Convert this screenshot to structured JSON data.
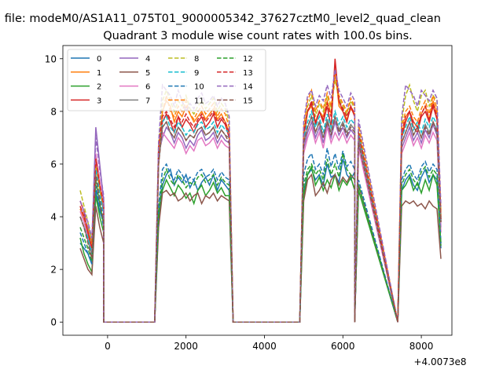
{
  "figure": {
    "suptitle": "n file: modeM0/AS1A11_075T01_9000005342_37627cztM0_level2_quad_clean",
    "title": "Quadrant 3 module wise count rates with 100.0s bins.",
    "offset_label": "+4.0073e8"
  },
  "chart_data": {
    "type": "line",
    "title": "Quadrant 3 module wise count rates with 100.0s bins.",
    "xlabel": "",
    "ylabel": "",
    "x_offset": 400730000,
    "xlim": [
      -1140,
      8780
    ],
    "ylim": [
      -0.5,
      10.5
    ],
    "xticks": [
      0,
      2000,
      4000,
      6000,
      8000
    ],
    "yticks": [
      0,
      2,
      4,
      6,
      8,
      10
    ],
    "grid": false,
    "legend": {
      "placement": "top-left",
      "ncol": 4
    },
    "series": [
      {
        "name": "0",
        "color": "#1f77b4",
        "dash": "solid",
        "seg1": [
          3.0,
          2.8,
          2.6,
          2.2,
          5.0,
          4.2,
          3.8
        ],
        "seg2": [
          4.0,
          5.2,
          5.6,
          5.8,
          5.2,
          5.5,
          5.3,
          5.6,
          5.1,
          5.4,
          5.0,
          5.3,
          5.5,
          5.2,
          5.6,
          5.0,
          5.4,
          5.2,
          5.0
        ],
        "seg3": [
          5.0,
          5.6,
          5.8,
          5.4,
          5.6,
          5.2,
          6.0,
          5.5,
          5.6,
          5.3,
          6.2,
          5.6,
          5.4,
          5.7,
          5.2
        ],
        "seg4": [
          5.0,
          5.4,
          5.6,
          5.2,
          5.0,
          5.5,
          5.8,
          5.3,
          5.6,
          5.4,
          2.8
        ]
      },
      {
        "name": "1",
        "color": "#ff7f0e",
        "dash": "solid",
        "seg1": [
          4.3,
          3.9,
          3.3,
          2.8,
          6.0,
          5.0,
          4.4
        ],
        "seg2": [
          6.0,
          8.0,
          8.4,
          8.2,
          7.6,
          8.0,
          7.8,
          8.2,
          7.9,
          7.6,
          7.8,
          8.0,
          7.7,
          7.9,
          8.1,
          7.7,
          7.9,
          7.6,
          7.2
        ],
        "seg3": [
          7.0,
          8.0,
          8.2,
          7.6,
          8.0,
          7.8,
          8.4,
          7.9,
          9.6,
          8.2,
          8.0,
          7.7,
          8.1,
          7.9,
          7.2
        ],
        "seg4": [
          7.0,
          7.8,
          8.0,
          7.6,
          7.4,
          7.9,
          8.2,
          7.7,
          8.4,
          7.9,
          4.0
        ]
      },
      {
        "name": "2",
        "color": "#2ca02c",
        "dash": "solid",
        "seg1": [
          3.2,
          2.6,
          2.2,
          1.9,
          4.8,
          4.0,
          3.4
        ],
        "seg2": [
          3.8,
          5.0,
          5.4,
          5.1,
          4.8,
          5.2,
          5.0,
          4.7,
          4.9,
          4.5,
          5.0,
          5.2,
          4.8,
          5.0,
          5.3,
          4.9,
          5.1,
          4.8,
          4.8
        ],
        "seg3": [
          4.8,
          5.6,
          5.9,
          5.2,
          5.5,
          5.0,
          5.4,
          5.1,
          5.6,
          5.0,
          5.4,
          5.2,
          5.5,
          5.0,
          5.0
        ],
        "seg4": [
          5.0,
          5.2,
          5.5,
          5.0,
          5.3,
          4.9,
          5.4,
          5.0,
          5.6,
          5.2,
          3.0
        ]
      },
      {
        "name": "3",
        "color": "#d62728",
        "dash": "solid",
        "seg1": [
          4.6,
          4.2,
          3.4,
          2.8,
          6.2,
          5.2,
          4.5
        ],
        "seg2": [
          6.6,
          7.6,
          7.9,
          7.6,
          7.2,
          7.8,
          7.4,
          7.7,
          7.5,
          7.2,
          7.6,
          7.8,
          7.4,
          7.6,
          7.9,
          7.4,
          7.7,
          7.5,
          7.0
        ],
        "seg3": [
          7.0,
          8.0,
          8.3,
          7.5,
          8.0,
          7.6,
          8.2,
          7.4,
          10.0,
          8.4,
          8.0,
          7.6,
          8.2,
          7.8,
          7.0
        ],
        "seg4": [
          7.0,
          7.6,
          8.0,
          7.4,
          7.2,
          7.8,
          8.0,
          7.6,
          8.2,
          7.7,
          3.8
        ]
      },
      {
        "name": "4",
        "color": "#9467bd",
        "dash": "solid",
        "seg1": [
          4.4,
          4.0,
          3.6,
          3.0,
          7.4,
          6.0,
          4.6
        ],
        "seg2": [
          6.4,
          7.0,
          7.4,
          7.2,
          6.8,
          7.2,
          7.0,
          6.6,
          6.9,
          6.7,
          7.1,
          7.3,
          6.9,
          7.0,
          7.2,
          6.8,
          7.1,
          6.9,
          6.8
        ],
        "seg3": [
          6.6,
          7.2,
          7.6,
          7.0,
          7.4,
          6.8,
          7.5,
          7.0,
          7.6,
          7.1,
          7.4,
          7.0,
          7.3,
          7.1,
          6.8
        ],
        "seg4": [
          6.6,
          7.0,
          7.4,
          6.9,
          7.2,
          6.8,
          7.3,
          7.0,
          7.5,
          7.1,
          3.6
        ]
      },
      {
        "name": "5",
        "color": "#8c564b",
        "dash": "solid",
        "seg1": [
          2.8,
          2.4,
          2.0,
          1.8,
          4.4,
          3.6,
          3.0
        ],
        "seg2": [
          3.6,
          4.9,
          5.0,
          4.8,
          4.9,
          4.6,
          4.7,
          4.9,
          4.6,
          4.8,
          4.9,
          4.5,
          4.8,
          4.7,
          4.9,
          4.6,
          4.8,
          4.7,
          4.6
        ],
        "seg3": [
          4.6,
          5.4,
          5.6,
          4.8,
          5.0,
          5.3,
          4.9,
          5.4,
          5.6,
          5.2,
          5.5,
          5.3,
          5.6,
          5.4,
          5.2
        ],
        "seg4": [
          4.4,
          4.6,
          4.5,
          4.6,
          4.4,
          4.5,
          4.3,
          4.6,
          4.4,
          4.3,
          2.4
        ]
      },
      {
        "name": "6",
        "color": "#e377c2",
        "dash": "solid",
        "seg1": [
          4.2,
          3.8,
          3.2,
          2.6,
          6.4,
          5.4,
          4.4
        ],
        "seg2": [
          6.2,
          7.2,
          7.0,
          6.8,
          6.6,
          7.0,
          6.8,
          6.4,
          6.7,
          6.5,
          6.9,
          7.0,
          6.7,
          6.8,
          7.0,
          6.6,
          6.9,
          6.7,
          6.6
        ],
        "seg3": [
          6.4,
          7.0,
          7.4,
          6.8,
          7.2,
          6.6,
          7.4,
          6.8,
          7.2,
          6.9,
          7.2,
          6.8,
          7.1,
          6.9,
          6.6
        ],
        "seg4": [
          6.4,
          6.8,
          7.2,
          6.7,
          7.0,
          6.6,
          7.1,
          6.8,
          7.2,
          6.9,
          3.4
        ]
      },
      {
        "name": "7",
        "color": "#7f7f7f",
        "dash": "solid",
        "seg1": [
          4.0,
          3.6,
          3.1,
          2.5,
          6.0,
          5.0,
          4.2
        ],
        "seg2": [
          6.0,
          7.4,
          7.6,
          7.2,
          7.0,
          7.4,
          7.2,
          6.9,
          7.1,
          7.0,
          7.3,
          7.4,
          7.1,
          7.2,
          7.4,
          7.0,
          7.3,
          7.1,
          7.0
        ],
        "seg3": [
          6.8,
          7.4,
          7.8,
          7.2,
          7.6,
          7.0,
          7.7,
          7.2,
          7.8,
          7.3,
          7.6,
          7.2,
          7.5,
          7.3,
          7.0
        ],
        "seg4": [
          6.8,
          7.2,
          7.6,
          7.1,
          7.4,
          7.0,
          7.5,
          7.2,
          7.6,
          7.3,
          3.8
        ]
      },
      {
        "name": "8",
        "color": "#bcbd22",
        "dash": "dashed",
        "seg1": [
          5.0,
          4.4,
          3.8,
          3.0,
          6.0,
          5.0,
          4.4
        ],
        "seg2": [
          6.8,
          8.4,
          8.8,
          8.4,
          8.0,
          8.4,
          8.2,
          8.6,
          8.1,
          7.9,
          8.2,
          8.4,
          8.1,
          8.3,
          8.5,
          8.0,
          8.3,
          8.1,
          7.6
        ],
        "seg3": [
          7.2,
          8.2,
          8.6,
          7.8,
          8.3,
          8.0,
          8.6,
          8.1,
          9.2,
          8.5,
          8.2,
          7.9,
          8.4,
          8.1,
          7.4
        ],
        "seg4": [
          7.6,
          8.6,
          9.0,
          8.4,
          8.0,
          8.6,
          8.8,
          8.2,
          8.6,
          8.4,
          4.2
        ]
      },
      {
        "name": "9",
        "color": "#17becf",
        "dash": "dashed",
        "seg1": [
          4.0,
          3.6,
          3.2,
          2.6,
          5.8,
          4.8,
          4.0
        ],
        "seg2": [
          6.2,
          7.6,
          7.8,
          7.4,
          7.2,
          7.6,
          7.4,
          7.1,
          7.3,
          7.2,
          7.5,
          7.6,
          7.3,
          7.4,
          7.6,
          7.2,
          7.5,
          7.3,
          7.2
        ],
        "seg3": [
          7.0,
          7.6,
          8.0,
          7.4,
          7.8,
          7.2,
          7.9,
          7.4,
          8.0,
          7.5,
          7.8,
          7.4,
          7.7,
          7.5,
          7.2
        ],
        "seg4": [
          7.0,
          7.4,
          7.8,
          7.3,
          7.6,
          7.2,
          7.7,
          7.4,
          7.8,
          7.5,
          3.9
        ]
      },
      {
        "name": "10",
        "color": "#1f77b4",
        "dash": "dashed",
        "seg1": [
          3.4,
          3.0,
          2.6,
          2.2,
          5.2,
          4.4,
          3.6
        ],
        "seg2": [
          4.4,
          5.8,
          6.0,
          5.6,
          5.4,
          5.8,
          5.6,
          5.3,
          5.5,
          5.4,
          5.7,
          5.8,
          5.5,
          5.6,
          5.8,
          5.4,
          5.7,
          5.5,
          5.4
        ],
        "seg3": [
          5.6,
          6.2,
          6.4,
          5.8,
          6.0,
          5.6,
          6.6,
          5.9,
          6.4,
          5.8,
          6.5,
          5.9,
          6.1,
          5.8,
          5.4
        ],
        "seg4": [
          5.4,
          5.8,
          6.0,
          5.6,
          5.4,
          5.9,
          6.1,
          5.7,
          6.0,
          5.8,
          3.0
        ]
      },
      {
        "name": "11",
        "color": "#ff7f0e",
        "dash": "dashed",
        "seg1": [
          4.4,
          4.0,
          3.5,
          2.9,
          6.2,
          5.2,
          4.4
        ],
        "seg2": [
          6.4,
          8.0,
          8.6,
          8.0,
          7.8,
          8.2,
          8.0,
          8.4,
          7.9,
          7.7,
          8.0,
          8.2,
          7.9,
          8.1,
          8.3,
          7.8,
          8.1,
          7.9,
          7.4
        ],
        "seg3": [
          7.4,
          8.4,
          8.8,
          8.0,
          8.4,
          8.1,
          8.7,
          8.2,
          9.4,
          8.6,
          8.3,
          8.0,
          8.5,
          8.2,
          7.5
        ],
        "seg4": [
          7.4,
          8.0,
          8.2,
          7.8,
          7.6,
          8.1,
          8.4,
          7.9,
          8.6,
          8.1,
          4.1
        ]
      },
      {
        "name": "12",
        "color": "#2ca02c",
        "dash": "dashed",
        "seg1": [
          3.6,
          3.2,
          2.8,
          2.3,
          5.4,
          4.5,
          3.7
        ],
        "seg2": [
          4.2,
          5.4,
          5.8,
          5.4,
          5.2,
          5.6,
          5.4,
          5.1,
          5.3,
          5.2,
          5.5,
          5.6,
          5.3,
          5.4,
          5.6,
          5.2,
          5.5,
          5.3,
          5.2
        ],
        "seg3": [
          5.2,
          5.8,
          6.0,
          5.6,
          5.8,
          5.4,
          6.2,
          5.6,
          6.0,
          5.5,
          6.4,
          5.8,
          5.6,
          5.4,
          5.2
        ],
        "seg4": [
          5.2,
          5.6,
          5.8,
          5.4,
          5.2,
          5.7,
          5.9,
          5.5,
          5.8,
          5.6,
          2.9
        ]
      },
      {
        "name": "13",
        "color": "#d62728",
        "dash": "dashed",
        "seg1": [
          4.4,
          4.0,
          3.4,
          2.8,
          6.2,
          5.2,
          4.5
        ],
        "seg2": [
          6.6,
          7.8,
          8.0,
          7.7,
          7.4,
          7.8,
          7.6,
          7.9,
          7.6,
          7.4,
          7.7,
          7.9,
          7.6,
          7.8,
          8.0,
          7.6,
          7.8,
          7.6,
          7.2
        ],
        "seg3": [
          7.2,
          8.0,
          8.4,
          7.6,
          8.0,
          7.7,
          8.3,
          7.8,
          9.8,
          8.4,
          8.1,
          7.8,
          8.2,
          7.9,
          7.2
        ],
        "seg4": [
          7.2,
          7.8,
          8.0,
          7.6,
          7.4,
          7.9,
          8.2,
          7.7,
          8.3,
          7.8,
          3.9
        ]
      },
      {
        "name": "14",
        "color": "#9467bd",
        "dash": "dashed",
        "seg1": [
          4.6,
          4.2,
          3.8,
          3.2,
          7.0,
          5.8,
          4.8
        ],
        "seg2": [
          6.8,
          9.0,
          8.8,
          8.6,
          8.2,
          8.8,
          8.4,
          8.0,
          8.3,
          8.1,
          8.5,
          8.7,
          8.3,
          8.4,
          8.6,
          8.2,
          8.5,
          8.3,
          7.8
        ],
        "seg3": [
          7.6,
          8.6,
          8.8,
          8.2,
          8.6,
          8.4,
          9.0,
          8.5,
          9.6,
          8.8,
          8.5,
          8.2,
          8.7,
          8.4,
          7.7
        ],
        "seg4": [
          7.8,
          9.0,
          8.8,
          8.6,
          8.2,
          8.8,
          8.6,
          8.4,
          8.8,
          8.5,
          4.4
        ]
      },
      {
        "name": "15",
        "color": "#8c564b",
        "dash": "dashed",
        "seg1": [
          4.0,
          3.6,
          3.0,
          2.4,
          5.6,
          4.6,
          3.8
        ],
        "seg2": [
          6.0,
          7.4,
          7.6,
          7.2,
          7.0,
          7.4,
          7.2,
          6.9,
          7.1,
          7.0,
          7.3,
          7.4,
          7.1,
          7.2,
          7.4,
          7.0,
          7.3,
          7.1,
          6.8
        ],
        "seg3": [
          6.8,
          7.4,
          7.8,
          7.2,
          7.6,
          7.0,
          7.6,
          7.1,
          7.8,
          7.2,
          7.5,
          7.1,
          7.4,
          7.2,
          6.8
        ],
        "seg4": [
          6.8,
          7.2,
          7.6,
          7.1,
          7.4,
          7.0,
          7.4,
          7.1,
          7.6,
          7.2,
          3.8
        ]
      }
    ]
  }
}
